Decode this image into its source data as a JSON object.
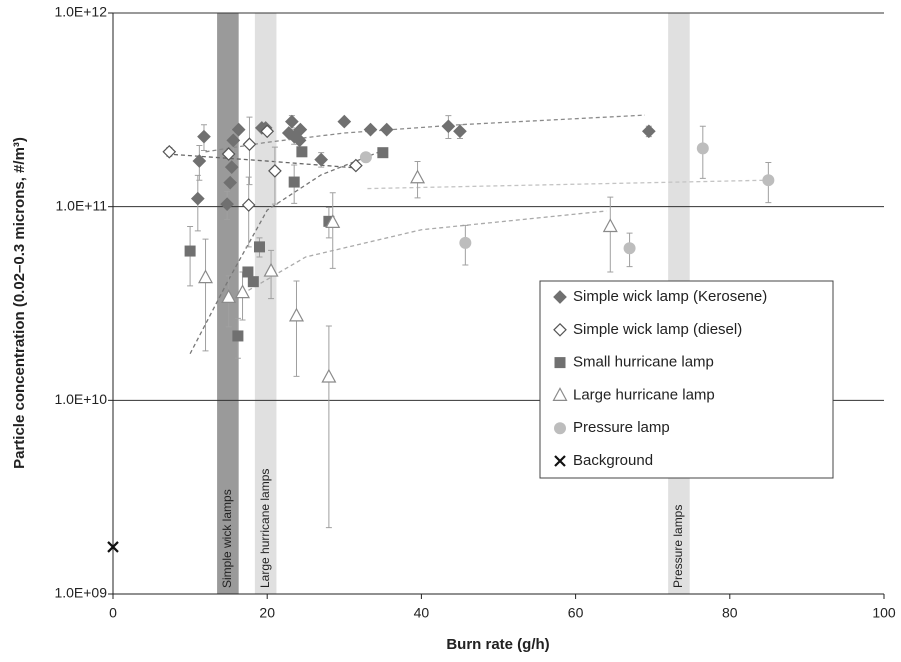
{
  "chart_data": {
    "type": "scatter",
    "x_label": "Burn rate (g/h)",
    "y_label": "Particle concentration (0.02–0.3 microns, #/m³)",
    "xlim": [
      0,
      100
    ],
    "xticks": [
      0,
      20,
      40,
      60,
      80,
      100
    ],
    "ylim": [
      1000000000,
      1000000000000
    ],
    "yticks": [
      {
        "value": 1000000000,
        "label": "1.0E+09"
      },
      {
        "value": 10000000000,
        "label": "1.0E+10"
      },
      {
        "value": 100000000000,
        "label": "1.0E+11"
      },
      {
        "value": 1000000000000,
        "label": "1.0E+12"
      }
    ],
    "log_y": true,
    "grid": true,
    "legend": "right",
    "error_color": "#a0a0a0",
    "bands": [
      {
        "xlim": [
          13.5,
          16.3
        ],
        "color": "#9a9a9a",
        "label": "Simple wick lamps"
      },
      {
        "xlim": [
          18.4,
          21.2
        ],
        "color": "#e0e0e0",
        "label": "Large hurricane lamps"
      },
      {
        "xlim": [
          72,
          74.8
        ],
        "color": "#e0e0e0",
        "label": "Pressure lamps"
      }
    ],
    "series": [
      {
        "name": "Simple wick lamp (Kerosene)",
        "color": "#707070",
        "marker": "diamond",
        "x": [
          11.2,
          11.0,
          11.8,
          14.8,
          15.2,
          15.4,
          15.6,
          16.3,
          19.3,
          19.8,
          22.8,
          23.2,
          23.5,
          24.2,
          24.3,
          27.0,
          30.0,
          33.4,
          35.5,
          43.5,
          45.0,
          69.5
        ],
        "values": [
          172000000000,
          110000000000,
          230000000000,
          103000000000,
          133000000000,
          160000000000,
          220000000000,
          250000000000,
          255000000000,
          255000000000,
          240000000000,
          275000000000,
          230000000000,
          220000000000,
          250000000000,
          175000000000,
          275000000000,
          250000000000,
          250000000000,
          260000000000,
          245000000000,
          245000000000
        ],
        "errors": [
          35000000000,
          35000000000,
          35000000000,
          17000000000,
          null,
          null,
          30000000000,
          null,
          null,
          null,
          null,
          20000000000,
          20000000000,
          null,
          null,
          15000000000,
          null,
          null,
          null,
          35000000000,
          20000000000,
          15000000000
        ]
      },
      {
        "name": "Simple wick lamp (diesel)",
        "color": "#555555",
        "marker": "diamond-open",
        "x": [
          7.3,
          15.0,
          17.7,
          17.6,
          20.0,
          21.0,
          31.5
        ],
        "values": [
          192000000000,
          187000000000,
          210000000000,
          102000000000,
          245000000000,
          153000000000,
          163000000000
        ],
        "errors": [
          10000000000,
          null,
          80000000000,
          40000000000,
          null,
          50000000000,
          null
        ]
      },
      {
        "name": "Small hurricane lamp",
        "color": "#707070",
        "marker": "square",
        "x": [
          10.0,
          16.2,
          17.5,
          18.2,
          19.0,
          23.5,
          24.5,
          28.0,
          35.0
        ],
        "values": [
          59000000000,
          21500000000,
          46000000000,
          41000000000,
          62000000000,
          134000000000,
          192000000000,
          84000000000,
          190000000000
        ],
        "errors": [
          20000000000,
          5000000000,
          null,
          null,
          7000000000,
          30000000000,
          null,
          15000000000,
          null
        ]
      },
      {
        "name": "Large hurricane lamp",
        "color": "#8a8a8a",
        "marker": "triangle-open",
        "x": [
          12.0,
          15.0,
          16.8,
          20.5,
          23.8,
          28.0,
          28.5,
          39.5,
          64.5
        ],
        "values": [
          43000000000,
          34000000000,
          36000000000,
          46500000000,
          27300000000,
          13200000000,
          83000000000,
          141000000000,
          79000000000
        ],
        "errors": [
          25000000000,
          10000000000,
          10000000000,
          13000000000,
          14000000000,
          11000000000,
          35000000000,
          30000000000,
          33000000000
        ]
      },
      {
        "name": "Pressure lamp",
        "color": "#bdbdbd",
        "marker": "circle",
        "x": [
          32.8,
          45.7,
          67.0,
          76.5,
          85.0
        ],
        "values": [
          180000000000,
          65000000000,
          61000000000,
          200000000000,
          137000000000
        ],
        "errors": [
          null,
          15000000000,
          12000000000,
          60000000000,
          32000000000
        ]
      },
      {
        "name": "Background",
        "color": "#111111",
        "marker": "cross",
        "x": [
          0
        ],
        "values": [
          1750000000
        ],
        "errors": [
          null
        ]
      }
    ],
    "trendlines": [
      {
        "color": "#8a8a8a",
        "x": [
          12,
          20,
          30,
          45,
          69
        ],
        "values": [
          192000000000,
          215000000000,
          240000000000,
          265000000000,
          297000000000
        ]
      },
      {
        "color": "#666666",
        "x": [
          7,
          20,
          32
        ],
        "values": [
          187000000000,
          172000000000,
          158000000000
        ]
      },
      {
        "color": "#777777",
        "x": [
          10,
          15,
          20,
          27,
          35
        ],
        "values": [
          17400000000,
          42000000000,
          96000000000,
          146000000000,
          195000000000
        ]
      },
      {
        "color": "#aaaaaa",
        "x": [
          16,
          25,
          40,
          64
        ],
        "values": [
          34000000000,
          55000000000,
          76000000000,
          95000000000
        ]
      },
      {
        "color": "#c4c4c4",
        "x": [
          33,
          85
        ],
        "values": [
          124000000000,
          137000000000
        ]
      }
    ]
  }
}
